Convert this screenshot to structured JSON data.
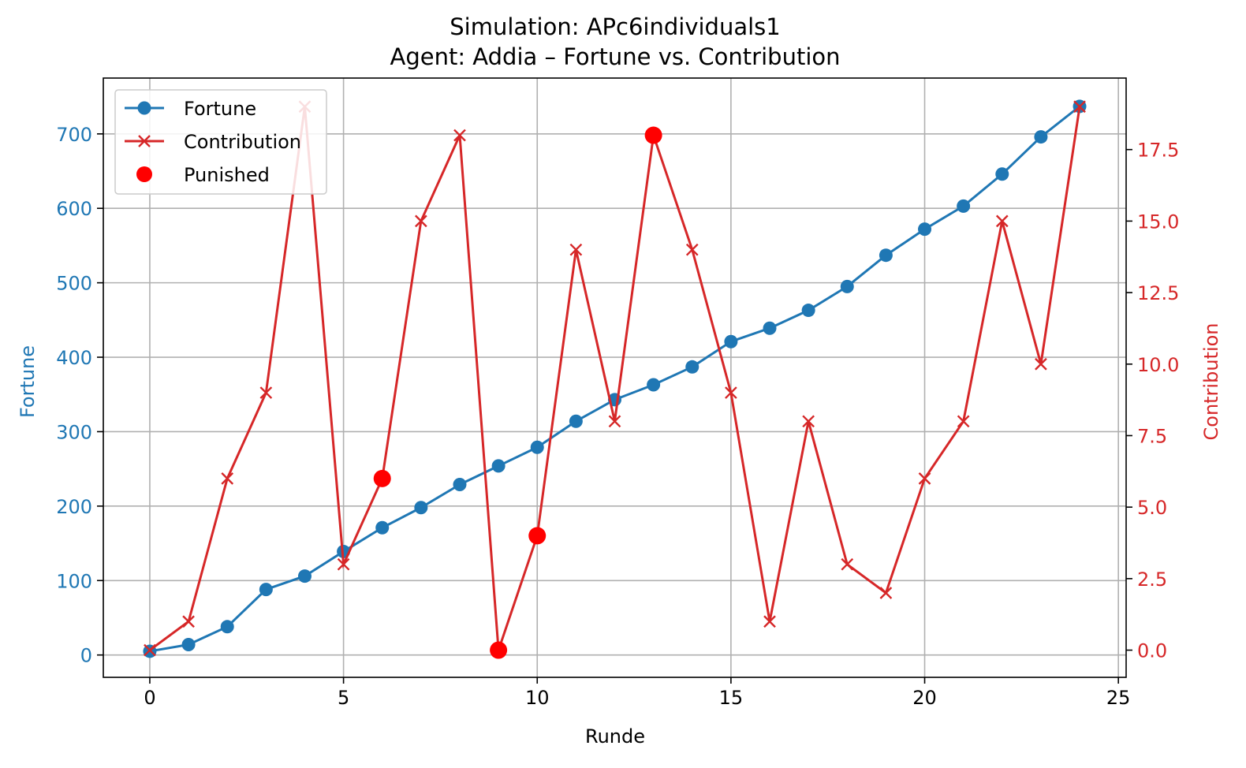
{
  "chart_data": {
    "type": "line",
    "title": "Simulation: APc6individuals1",
    "subtitle": "Agent: Addia – Fortune vs. Contribution",
    "xlabel": "Runde",
    "ylabel_left": "Fortune",
    "ylabel_right": "Contribution",
    "xlim": [
      -1.2,
      25.2
    ],
    "ylim_left": [
      -30,
      775
    ],
    "ylim_right": [
      -0.95,
      20.0
    ],
    "x_ticks": [
      0,
      5,
      10,
      15,
      20,
      25
    ],
    "x_tick_labels": [
      "0",
      "5",
      "10",
      "15",
      "20",
      "25"
    ],
    "y_left_ticks": [
      0,
      100,
      200,
      300,
      400,
      500,
      600,
      700
    ],
    "y_left_tick_labels": [
      "0",
      "100",
      "200",
      "300",
      "400",
      "500",
      "600",
      "700"
    ],
    "y_right_ticks": [
      0,
      2.5,
      5,
      7.5,
      10,
      12.5,
      15,
      17.5
    ],
    "y_right_tick_labels": [
      "0.0",
      "2.5",
      "5.0",
      "7.5",
      "10.0",
      "12.5",
      "15.0",
      "17.5"
    ],
    "grid": true,
    "legend_position": "top-left",
    "x": [
      0,
      1,
      2,
      3,
      4,
      5,
      6,
      7,
      8,
      9,
      10,
      11,
      12,
      13,
      14,
      15,
      16,
      17,
      18,
      19,
      20,
      21,
      22,
      23,
      24
    ],
    "series": [
      {
        "name": "Fortune",
        "axis": "left",
        "color": "#1f77b4",
        "marker": "circle",
        "values": [
          5,
          14,
          38,
          88,
          106,
          139,
          171,
          198,
          229,
          254,
          279,
          314,
          343,
          363,
          387,
          421,
          439,
          463,
          495,
          537,
          572,
          603,
          646,
          696,
          737
        ]
      },
      {
        "name": "Contribution",
        "axis": "right",
        "color": "#d62728",
        "marker": "x",
        "values": [
          0,
          1,
          6,
          9,
          19,
          3,
          6,
          15,
          18,
          0,
          4,
          14,
          8,
          18,
          14,
          9,
          1,
          8,
          3,
          2,
          6,
          8,
          15,
          10,
          19
        ]
      },
      {
        "name": "Punished",
        "axis": "right",
        "color": "#ff0000",
        "marker": "dot",
        "points": [
          {
            "x": 6,
            "y": 6
          },
          {
            "x": 9,
            "y": 0
          },
          {
            "x": 10,
            "y": 4
          },
          {
            "x": 13,
            "y": 18
          }
        ]
      }
    ]
  }
}
